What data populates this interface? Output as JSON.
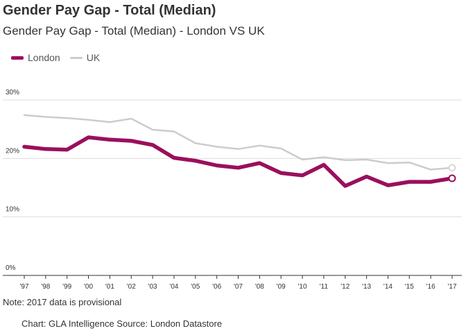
{
  "title": "Gender Pay Gap - Total (Median)",
  "subtitle": "Gender Pay Gap - Total (Median) - London VS UK",
  "note": "Note: 2017 data is provisional",
  "credits": "Chart: GLA Intelligence  Source: London Datastore",
  "legend": {
    "london_label": "London",
    "uk_label": "UK"
  },
  "colors": {
    "london": "#9a0f5e",
    "uk": "#cccccc",
    "grid": "#dddddd",
    "axis": "#333333",
    "text": "#333333"
  },
  "chart_data": {
    "type": "line",
    "title": "Gender Pay Gap - Total (Median)",
    "subtitle": "Gender Pay Gap - Total (Median) - London VS UK",
    "xlabel": "",
    "ylabel": "",
    "categories": [
      "'97",
      "'98",
      "'99",
      "'00",
      "'01",
      "'02",
      "'03",
      "'04",
      "'05",
      "'06",
      "'07",
      "'08",
      "'09",
      "'10",
      "'11",
      "'12",
      "'13",
      "'14",
      "'15",
      "'16",
      "'17"
    ],
    "y_ticks": [
      "0%",
      "10%",
      "20%",
      "30%"
    ],
    "ylim": [
      0,
      30
    ],
    "grid": true,
    "legend_position": "top-left",
    "series": [
      {
        "name": "London",
        "values": [
          22.0,
          21.6,
          21.5,
          23.6,
          23.2,
          23.0,
          22.3,
          20.1,
          19.6,
          18.8,
          18.4,
          19.2,
          17.5,
          17.1,
          18.9,
          15.3,
          16.9,
          15.4,
          16.0,
          16.0,
          16.6
        ]
      },
      {
        "name": "UK",
        "values": [
          27.4,
          27.1,
          26.9,
          26.6,
          26.2,
          26.8,
          24.9,
          24.6,
          22.6,
          22.0,
          21.6,
          22.2,
          21.7,
          19.8,
          20.2,
          19.7,
          19.8,
          19.2,
          19.3,
          18.1,
          18.4
        ]
      }
    ]
  }
}
